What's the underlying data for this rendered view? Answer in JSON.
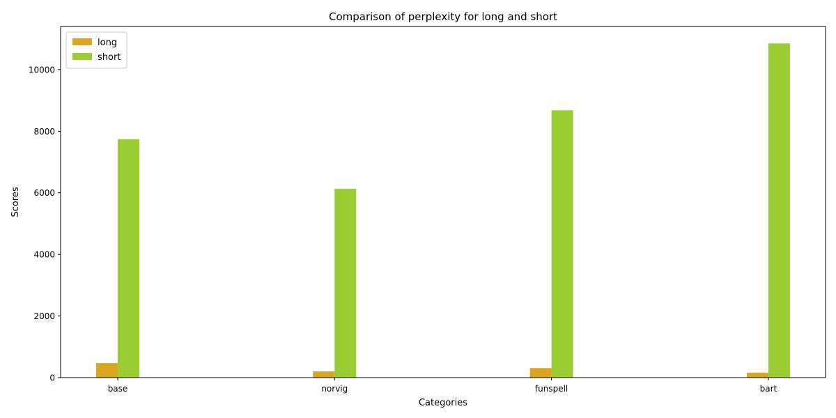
{
  "chart_data": {
    "type": "bar",
    "title": "Comparison of perplexity for long and short",
    "xlabel": "Categories",
    "ylabel": "Scores",
    "categories": [
      "base",
      "norvig",
      "funspell",
      "bart"
    ],
    "series": [
      {
        "name": "long",
        "color": "#daa520",
        "values": [
          470,
          200,
          310,
          160
        ]
      },
      {
        "name": "short",
        "color": "#9acd32",
        "values": [
          7740,
          6130,
          8680,
          10850
        ]
      }
    ],
    "ylim": [
      0,
      11400
    ],
    "yticks": [
      0,
      2000,
      4000,
      6000,
      8000,
      10000
    ],
    "legend_position": "top-left",
    "grid": false
  }
}
